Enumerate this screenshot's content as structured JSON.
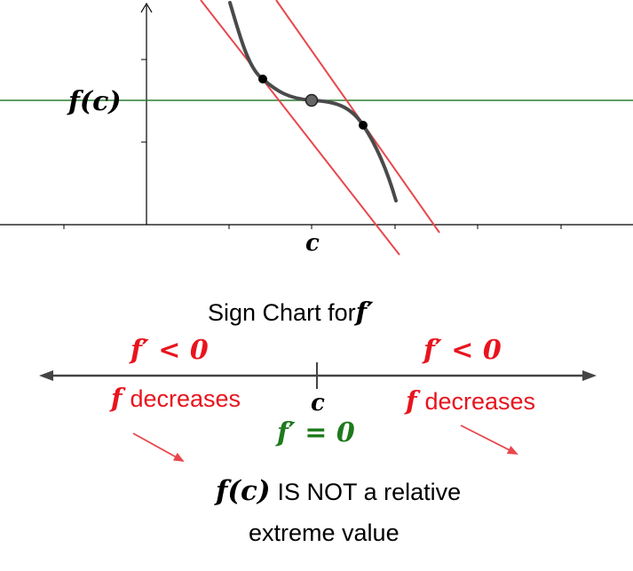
{
  "graph": {
    "fc_label": "f(c)",
    "c_label": "c",
    "colors": {
      "curve": "#4a4a4a",
      "tangent": "#e8474c",
      "horizontal": "#2e7d32",
      "axis": "#000000",
      "point_fill": "#000000",
      "center_point_fill": "#666666"
    }
  },
  "sign_chart": {
    "title": "Sign Chart for",
    "title_math": "f′",
    "left_sign": "f′ < 0",
    "right_sign": "f′ < 0",
    "left_f": "f",
    "left_desc": "decreases",
    "right_f": "f",
    "right_desc": "decreases",
    "c_label": "c",
    "center_value": "f′ = 0",
    "conclusion_math": "f(c)",
    "conclusion_line1": "IS NOT a relative",
    "conclusion_line2": "extreme value",
    "colors": {
      "red": "#e8141e",
      "green": "#1e7a1e",
      "line": "#444444",
      "arrow_red": "#e8474c"
    }
  }
}
